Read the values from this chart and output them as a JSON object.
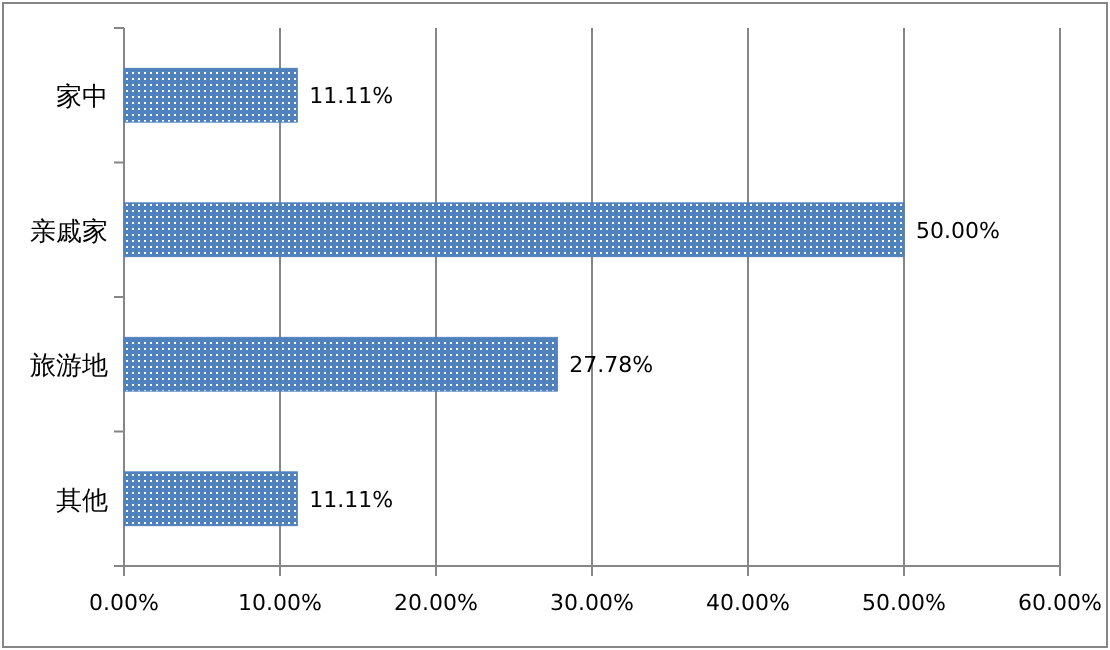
{
  "chart_data": {
    "type": "bar",
    "orientation": "horizontal",
    "categories": [
      "家中",
      "亲戚家",
      "旅游地",
      "其他"
    ],
    "values": [
      11.11,
      50,
      27.78,
      11.11
    ],
    "value_labels": [
      "11.11%",
      "50.00%",
      "27.78%",
      "11.11%"
    ],
    "color": "#4f81bd",
    "xlim": [
      0,
      60
    ],
    "xticks": [
      {
        "value": 0,
        "label": "0.00%"
      },
      {
        "value": 10,
        "label": "10.00%"
      },
      {
        "value": 20,
        "label": "20.00%"
      },
      {
        "value": 30,
        "label": "30.00%"
      },
      {
        "value": 40,
        "label": "40.00%"
      },
      {
        "value": 50,
        "label": "50.00%"
      },
      {
        "value": 60,
        "label": "60.00%"
      }
    ],
    "grid": "x"
  }
}
